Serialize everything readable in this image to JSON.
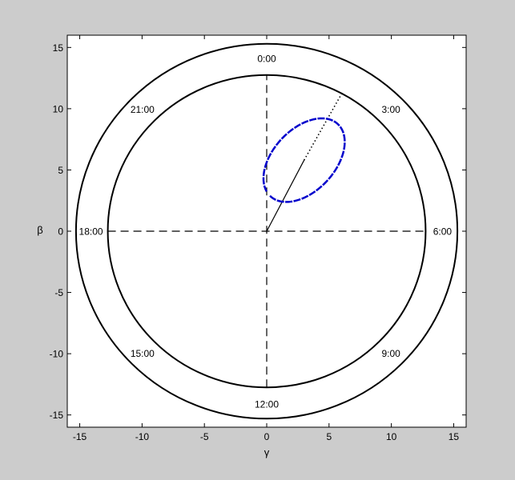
{
  "window": {
    "background": "#cccccc"
  },
  "chart_data": {
    "type": "line",
    "title": "",
    "xlabel": "γ",
    "ylabel": "β",
    "xlim": [
      -16,
      16
    ],
    "ylim": [
      -16,
      16
    ],
    "xticks": [
      -15,
      -10,
      -5,
      0,
      5,
      10,
      15
    ],
    "yticks": [
      -15,
      -10,
      -5,
      0,
      5,
      10,
      15
    ],
    "grid": false,
    "legend": "none",
    "dial": {
      "inner_radius": 12.75,
      "outer_radius": 15.3,
      "label_radius": 14.1,
      "hour_labels": [
        {
          "label": "0:00",
          "angle_deg": 0
        },
        {
          "label": "3:00",
          "angle_deg": 45
        },
        {
          "label": "6:00",
          "angle_deg": 90
        },
        {
          "label": "9:00",
          "angle_deg": 135
        },
        {
          "label": "12:00",
          "angle_deg": 180
        },
        {
          "label": "15:00",
          "angle_deg": 225
        },
        {
          "label": "18:00",
          "angle_deg": 270
        },
        {
          "label": "21:00",
          "angle_deg": 315
        }
      ]
    },
    "series": [
      {
        "style": "dashed",
        "color": "#000000",
        "x": [
          0,
          0
        ],
        "y": [
          -12.75,
          12.75
        ]
      },
      {
        "style": "dashed",
        "color": "#000000",
        "x": [
          -12.75,
          12.75
        ],
        "y": [
          0,
          0
        ]
      },
      {
        "style": "solid",
        "color": "#000000",
        "x": [
          0,
          3
        ],
        "y": [
          0,
          5.8
        ]
      },
      {
        "style": "dotted",
        "color": "#000000",
        "x": [
          3,
          6
        ],
        "y": [
          5.8,
          11.2
        ]
      },
      {
        "style": "ellipse",
        "color": "#0000cc",
        "center": [
          3.0,
          5.8
        ],
        "semi_axes": [
          4.0,
          2.5
        ],
        "rotation_deg": 48,
        "gap_start_deg": 168,
        "gap_end_deg": 178
      }
    ]
  }
}
